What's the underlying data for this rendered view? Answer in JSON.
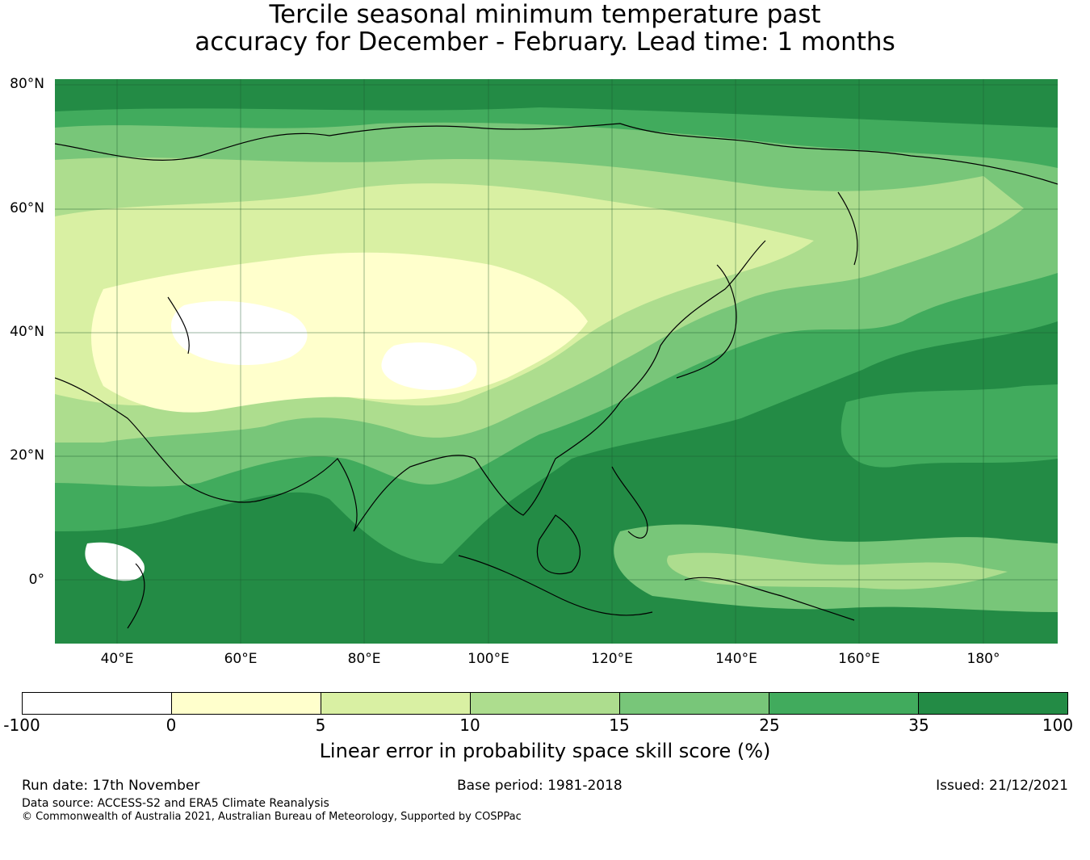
{
  "title": {
    "line1": "Tercile seasonal minimum temperature past",
    "line2": "accuracy for December - February. Lead time: 1 months"
  },
  "map": {
    "lat_labels": [
      "80°N",
      "60°N",
      "40°N",
      "20°N",
      "0°"
    ],
    "lon_labels": [
      "40°E",
      "60°E",
      "80°E",
      "100°E",
      "120°E",
      "140°E",
      "160°E",
      "180°"
    ]
  },
  "colorbar": {
    "label": "Linear error in probability space skill score (%)",
    "ticks": [
      "-100",
      "0",
      "5",
      "10",
      "15",
      "25",
      "35",
      "100"
    ],
    "colors": [
      "#ffffff",
      "#ffffcc",
      "#d9f0a3",
      "#addd8e",
      "#78c679",
      "#41ab5d",
      "#238b45"
    ]
  },
  "footer": {
    "run_date": "Run date: 17th November",
    "base_period": "Base period: 1981-2018",
    "issued": "Issued: 21/12/2021",
    "data_source": "Data source: ACCESS-S2 and ERA5 Climate Reanalysis",
    "copyright": "© Commonwealth of Australia 2021, Australian Bureau of Meteorology, Supported by COSPPac"
  }
}
